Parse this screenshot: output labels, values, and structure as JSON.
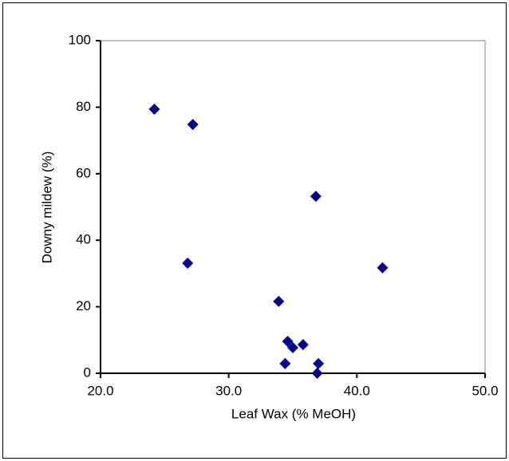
{
  "chart_data": {
    "type": "scatter",
    "x_label": "Leaf Wax (% MeOH)",
    "y_label": "Downy mildew (%)",
    "series": [
      {
        "color": "#00008b",
        "x": [
          24.2,
          27.2,
          26.8,
          36.8,
          42.0,
          33.9,
          34.6,
          35.0,
          35.8,
          34.4,
          37.0,
          36.9
        ],
        "values": [
          79.4,
          74.8,
          33.1,
          53.2,
          31.7,
          21.6,
          9.6,
          7.7,
          8.6,
          2.9,
          2.9,
          0
        ]
      }
    ],
    "xlim": [
      20,
      50
    ],
    "xticks": [
      {
        "value": 20,
        "label": "20.0"
      },
      {
        "value": 30,
        "label": "30.0"
      },
      {
        "value": 40,
        "label": "40.0"
      },
      {
        "value": 50,
        "label": "50.0"
      }
    ],
    "ylim": [
      0,
      100
    ],
    "yticks": [
      0,
      20,
      40,
      60,
      80,
      100
    ],
    "grid": false
  }
}
